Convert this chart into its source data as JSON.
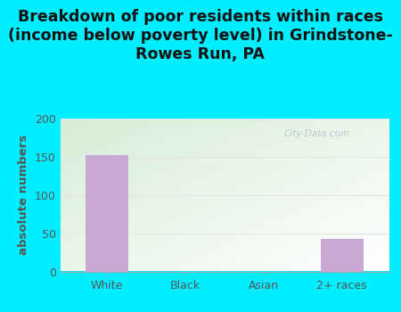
{
  "title": "Breakdown of poor residents within races\n(income below poverty level) in Grindstone-\nRowes Run, PA",
  "categories": [
    "White",
    "Black",
    "Asian",
    "2+ races"
  ],
  "values": [
    152,
    0,
    0,
    43
  ],
  "bar_color": "#c9a8d4",
  "ylabel": "absolute numbers",
  "ylim": [
    0,
    200
  ],
  "yticks": [
    0,
    50,
    100,
    150,
    200
  ],
  "background_outer": "#00eeff",
  "background_plot_topleft": "#d6edd6",
  "background_plot_bottomright": "#ffffff",
  "title_fontsize": 12.5,
  "title_color": "#111111",
  "axis_label_fontsize": 9.5,
  "axis_label_color": "#555555",
  "tick_fontsize": 9,
  "tick_color": "#555555",
  "watermark": "City-Data.com",
  "watermark_color": "#aabbcc",
  "grid_color": "#e0e8e0",
  "spine_color": "#aaaaaa"
}
